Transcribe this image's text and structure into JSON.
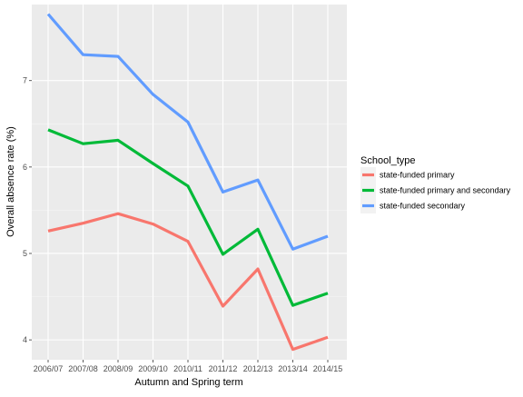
{
  "chart_data": {
    "type": "line",
    "title": "",
    "xlabel": "Autumn and Spring term",
    "ylabel": "Overall absence rate (%)",
    "categories": [
      "2006/07",
      "2007/08",
      "2008/09",
      "2009/10",
      "2010/11",
      "2011/12",
      "2012/13",
      "2013/14",
      "2014/15"
    ],
    "yticks": [
      4,
      5,
      6,
      7
    ],
    "ylim": [
      3.77,
      7.88
    ],
    "grid": true,
    "legend": {
      "title": "School_type",
      "position": "right"
    },
    "series": [
      {
        "name": "state-funded primary",
        "color": "#F8766D",
        "values": [
          5.26,
          5.35,
          5.46,
          5.34,
          5.14,
          4.39,
          4.82,
          3.89,
          4.03
        ]
      },
      {
        "name": "state-funded primary and secondary",
        "color": "#00BA38",
        "values": [
          6.43,
          6.27,
          6.31,
          6.04,
          5.78,
          4.99,
          5.28,
          4.4,
          4.54
        ]
      },
      {
        "name": "state-funded secondary",
        "color": "#619CFF",
        "values": [
          7.77,
          7.3,
          7.28,
          6.84,
          6.52,
          5.71,
          5.85,
          5.05,
          5.2
        ]
      }
    ]
  }
}
